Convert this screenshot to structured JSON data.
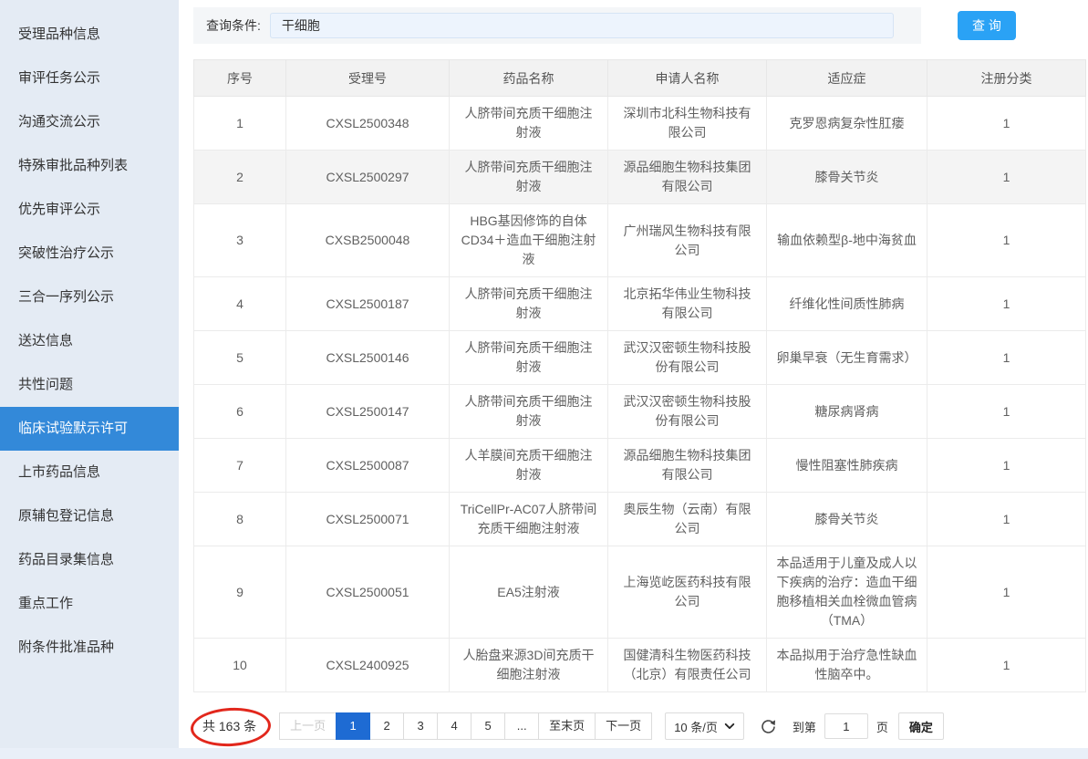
{
  "sidebar": {
    "items": [
      {
        "label": "受理品种信息",
        "active": false
      },
      {
        "label": "审评任务公示",
        "active": false
      },
      {
        "label": "沟通交流公示",
        "active": false
      },
      {
        "label": "特殊审批品种列表",
        "active": false
      },
      {
        "label": "优先审评公示",
        "active": false
      },
      {
        "label": "突破性治疗公示",
        "active": false
      },
      {
        "label": "三合一序列公示",
        "active": false
      },
      {
        "label": "送达信息",
        "active": false
      },
      {
        "label": "共性问题",
        "active": false
      },
      {
        "label": "临床试验默示许可",
        "active": true
      },
      {
        "label": "上市药品信息",
        "active": false
      },
      {
        "label": "原辅包登记信息",
        "active": false
      },
      {
        "label": "药品目录集信息",
        "active": false
      },
      {
        "label": "重点工作",
        "active": false
      },
      {
        "label": "附条件批准品种",
        "active": false
      }
    ]
  },
  "query": {
    "label": "查询条件:",
    "value": "干细胞",
    "button_label": "查 询"
  },
  "table": {
    "headers": [
      "序号",
      "受理号",
      "药品名称",
      "申请人名称",
      "适应症",
      "注册分类"
    ],
    "rows": [
      {
        "no": "1",
        "acceptance_no": "CXSL2500348",
        "drug_name": "人脐带间充质干细胞注射液",
        "applicant": "深圳市北科生物科技有限公司",
        "indication": "克罗恩病复杂性肛瘘",
        "reg_class": "1",
        "highlighted": false
      },
      {
        "no": "2",
        "acceptance_no": "CXSL2500297",
        "drug_name": "人脐带间充质干细胞注射液",
        "applicant": "源品细胞生物科技集团有限公司",
        "indication": "膝骨关节炎",
        "reg_class": "1",
        "highlighted": true
      },
      {
        "no": "3",
        "acceptance_no": "CXSB2500048",
        "drug_name": "HBG基因修饰的自体CD34＋造血干细胞注射液",
        "applicant": "广州瑞风生物科技有限公司",
        "indication": "输血依赖型β-地中海贫血",
        "reg_class": "1",
        "highlighted": false
      },
      {
        "no": "4",
        "acceptance_no": "CXSL2500187",
        "drug_name": "人脐带间充质干细胞注射液",
        "applicant": "北京拓华伟业生物科技有限公司",
        "indication": "纤维化性间质性肺病",
        "reg_class": "1",
        "highlighted": false
      },
      {
        "no": "5",
        "acceptance_no": "CXSL2500146",
        "drug_name": "人脐带间充质干细胞注射液",
        "applicant": "武汉汉密顿生物科技股份有限公司",
        "indication": "卵巢早衰（无生育需求）",
        "reg_class": "1",
        "highlighted": false
      },
      {
        "no": "6",
        "acceptance_no": "CXSL2500147",
        "drug_name": "人脐带间充质干细胞注射液",
        "applicant": "武汉汉密顿生物科技股份有限公司",
        "indication": "糖尿病肾病",
        "reg_class": "1",
        "highlighted": false
      },
      {
        "no": "7",
        "acceptance_no": "CXSL2500087",
        "drug_name": "人羊膜间充质干细胞注射液",
        "applicant": "源品细胞生物科技集团有限公司",
        "indication": "慢性阻塞性肺疾病",
        "reg_class": "1",
        "highlighted": false
      },
      {
        "no": "8",
        "acceptance_no": "CXSL2500071",
        "drug_name": "TriCellPr-AC07人脐带间充质干细胞注射液",
        "applicant": "奥辰生物（云南）有限公司",
        "indication": "膝骨关节炎",
        "reg_class": "1",
        "highlighted": false
      },
      {
        "no": "9",
        "acceptance_no": "CXSL2500051",
        "drug_name": "EA5注射液",
        "applicant": "上海览屹医药科技有限公司",
        "indication": "本品适用于儿童及成人以下疾病的治疗：造血干细胞移植相关血栓微血管病（TMA）",
        "reg_class": "1",
        "highlighted": false
      },
      {
        "no": "10",
        "acceptance_no": "CXSL2400925",
        "drug_name": "人胎盘来源3D间充质干细胞注射液",
        "applicant": "国健清科生物医药科技（北京）有限责任公司",
        "indication": "本品拟用于治疗急性缺血性脑卒中。",
        "reg_class": "1",
        "highlighted": false
      }
    ]
  },
  "pagination": {
    "total_text": "共 163 条",
    "prev_label": "上一页",
    "pages": [
      "1",
      "2",
      "3",
      "4",
      "5"
    ],
    "active_page": "1",
    "ellipsis_label": "...",
    "last_label": "至末页",
    "next_label": "下一页",
    "page_size_label": "10 条/页",
    "jump_prefix": "到第",
    "jump_value": "1",
    "jump_suffix": "页",
    "confirm_label": "确定"
  },
  "colors": {
    "sidebar_bg": "#e4ebf4",
    "sidebar_active_bg": "#3389d9",
    "query_button_bg": "#2aa2f5",
    "active_page_bg": "#1e6bd3",
    "annotation_red": "#e2271c"
  }
}
